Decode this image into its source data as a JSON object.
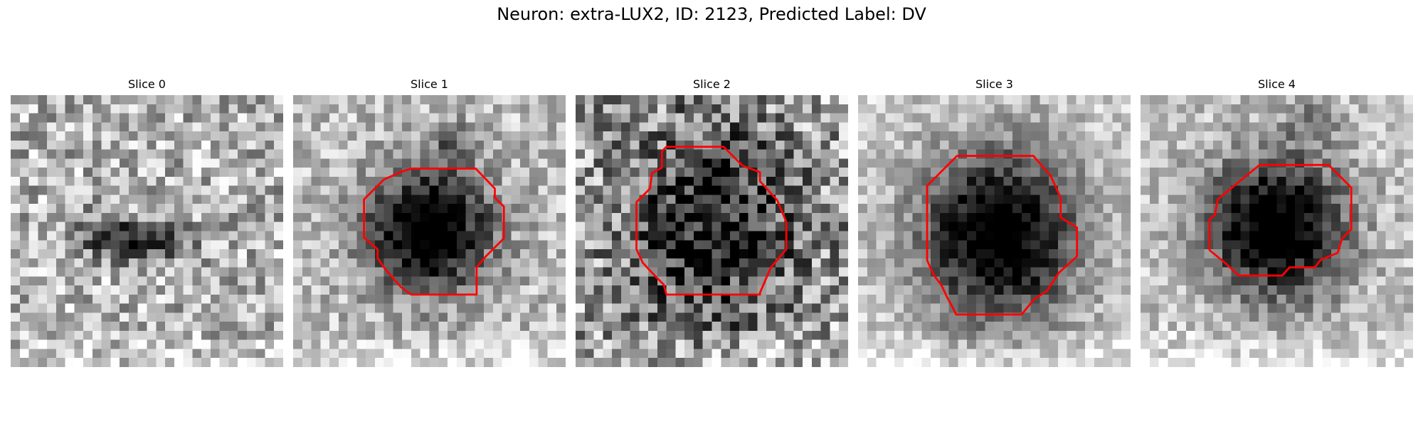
{
  "figure": {
    "suptitle": "Neuron: extra-LUX2, ID: 2123, Predicted Label: DV",
    "contour_color": "#ff0000"
  },
  "panels": [
    {
      "title": "Slice 0",
      "has_contour": false
    },
    {
      "title": "Slice 1",
      "has_contour": true
    },
    {
      "title": "Slice 2",
      "has_contour": true
    },
    {
      "title": "Slice 3",
      "has_contour": true
    },
    {
      "title": "Slice 4",
      "has_contour": true
    }
  ]
}
